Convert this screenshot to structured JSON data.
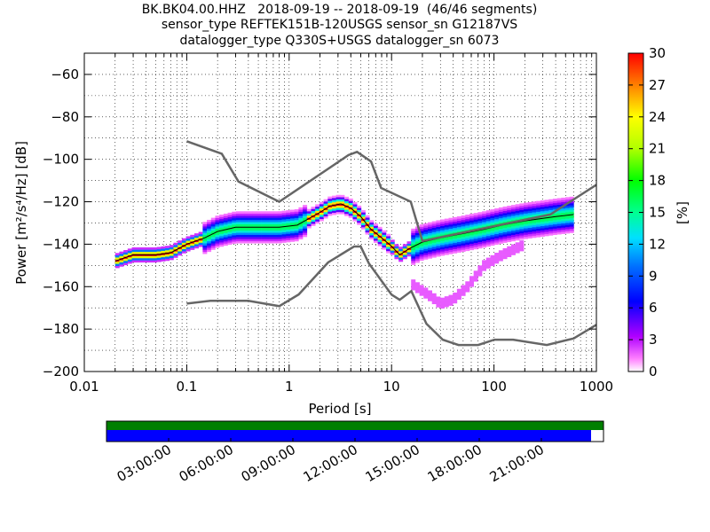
{
  "title_lines": [
    "BK.BK04.00.HHZ   2018-09-19 -- 2018-09-19  (46/46 segments)",
    "sensor_type REFTEK151B-120USGS sensor_sn G12187VS",
    "datalogger_type Q330S+USGS datalogger_sn 6073"
  ],
  "chart_data": [
    {
      "type": "heatmap",
      "x_scale": "log",
      "xlim": [
        0.01,
        1000
      ],
      "ylim": [
        -200,
        -50
      ],
      "xlabel": "Period [s]",
      "ylabel": "Power [m²/s⁴/Hz] [dB]",
      "x_tick_values": [
        0.01,
        0.1,
        1,
        10,
        100,
        1000
      ],
      "x_tick_labels": [
        "0.01",
        "0.1",
        "1",
        "10",
        "100",
        "1000"
      ],
      "y_tick_values": [
        -200,
        -180,
        -160,
        -140,
        -120,
        -100,
        -80,
        -60
      ],
      "y_tick_labels": [
        "−200",
        "−180",
        "−160",
        "−140",
        "−120",
        "−100",
        "−80",
        "−60"
      ],
      "grid": true,
      "colorbar": {
        "label": "[%]",
        "range": [
          0,
          30
        ],
        "tick_values": [
          0,
          3,
          6,
          9,
          12,
          15,
          18,
          21,
          24,
          27,
          30
        ],
        "tick_labels": [
          "0",
          "3",
          "6",
          "9",
          "12",
          "15",
          "18",
          "21",
          "24",
          "27",
          "30"
        ]
      },
      "noise_models": [
        {
          "kind": "high",
          "x": [
            0.1,
            0.22,
            0.32,
            0.8,
            3.8,
            4.6,
            6.3,
            7.9,
            15.4,
            20,
            354.8,
            1000
          ],
          "y": [
            -91.5,
            -97.4,
            -110.5,
            -120,
            -98,
            -96.5,
            -101,
            -113.5,
            -120,
            -138.5,
            -126,
            -112
          ]
        },
        {
          "kind": "low",
          "x": [
            0.1,
            0.17,
            0.4,
            0.8,
            1.24,
            2.4,
            4.3,
            5,
            6,
            10,
            12,
            15.6,
            21.9,
            31.6,
            45,
            70,
            101,
            154,
            328,
            600,
            1000
          ],
          "y": [
            -168,
            -166.7,
            -166.7,
            -169.2,
            -163.7,
            -148.6,
            -141.1,
            -141.1,
            -149,
            -163.8,
            -166.2,
            -162.1,
            -177.5,
            -185,
            -187.5,
            -187.5,
            -185,
            -185,
            -187.5,
            -184.4,
            -178
          ]
        }
      ],
      "density_mode": {
        "x": [
          0.02,
          0.03,
          0.05,
          0.07,
          0.1,
          0.15,
          0.2,
          0.3,
          0.5,
          0.8,
          1.2,
          2,
          2.5,
          3.2,
          4,
          5,
          6.3,
          8,
          10,
          12,
          15,
          20,
          30,
          50,
          80,
          120,
          200,
          400,
          600
        ],
        "y": [
          -148,
          -145,
          -145,
          -144,
          -140,
          -137,
          -134,
          -132,
          -132,
          -132,
          -131,
          -125,
          -122,
          -121,
          -123,
          -127,
          -133,
          -137,
          -141,
          -145,
          -142,
          -139,
          -137,
          -135,
          -133,
          -131,
          -129,
          -127,
          -126
        ]
      },
      "secondary_branch": {
        "x": [
          15,
          20,
          25,
          30,
          40,
          55,
          80,
          120,
          200
        ],
        "y": [
          -158,
          -162,
          -165,
          -168,
          -166,
          -160,
          -150,
          -145,
          -140
        ]
      },
      "max_percent": 30
    },
    {
      "type": "timeline",
      "tick_labels": [
        "03:00:00",
        "06:00:00",
        "09:00:00",
        "12:00:00",
        "15:00:00",
        "18:00:00",
        "21:00:00"
      ],
      "tick_hours": [
        3,
        6,
        9,
        12,
        15,
        18,
        21
      ],
      "total_hours": 24,
      "available_fraction": 1.0,
      "used_fraction": 0.975,
      "colors": {
        "available": "#007f00",
        "used": "#0000ff"
      }
    }
  ]
}
